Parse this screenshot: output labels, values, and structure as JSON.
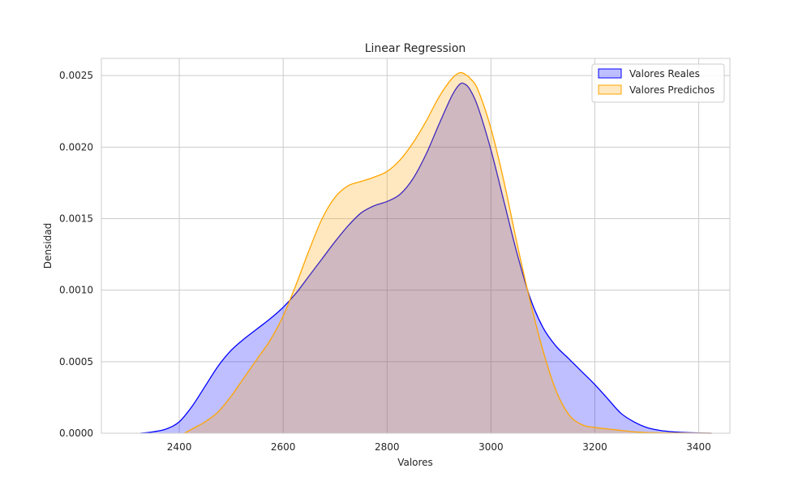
{
  "chart_data": {
    "type": "area",
    "title": "Linear Regression",
    "xlabel": "Valores",
    "ylabel": "Densidad",
    "xlim": [
      2250,
      3460
    ],
    "ylim": [
      0,
      0.00262
    ],
    "xticks": [
      2400,
      2600,
      2800,
      3000,
      3200,
      3400
    ],
    "xtick_labels": [
      "2400",
      "2600",
      "2800",
      "3000",
      "3200",
      "3400"
    ],
    "yticks": [
      0,
      0.0005,
      0.001,
      0.0015,
      0.002,
      0.0025
    ],
    "ytick_labels": [
      "0.0000",
      "0.0005",
      "0.0010",
      "0.0015",
      "0.0020",
      "0.0025"
    ],
    "grid": true,
    "legend_position": "top-right",
    "series": [
      {
        "name": "Valores Reales",
        "color": "#0000ff",
        "fill": "rgba(0,0,255,0.25)",
        "x": [
          2325,
          2350,
          2375,
          2400,
          2425,
          2450,
          2475,
          2500,
          2525,
          2550,
          2575,
          2600,
          2625,
          2650,
          2675,
          2700,
          2725,
          2750,
          2775,
          2800,
          2825,
          2850,
          2875,
          2900,
          2925,
          2940,
          2950,
          2960,
          2975,
          3000,
          3025,
          3050,
          3075,
          3100,
          3125,
          3150,
          3175,
          3200,
          3225,
          3250,
          3275,
          3300,
          3325,
          3350,
          3375,
          3400,
          3425
        ],
        "y": [
          0.0,
          1e-05,
          3e-05,
          8e-05,
          0.00019,
          0.00033,
          0.00047,
          0.00058,
          0.00066,
          0.00073,
          0.0008,
          0.00088,
          0.00098,
          0.0011,
          0.00122,
          0.00134,
          0.00145,
          0.00154,
          0.00159,
          0.00162,
          0.00167,
          0.00178,
          0.00195,
          0.00216,
          0.00236,
          0.00244,
          0.00244,
          0.0024,
          0.00228,
          0.00198,
          0.00162,
          0.00126,
          0.00095,
          0.00074,
          0.00061,
          0.00052,
          0.00043,
          0.00034,
          0.00024,
          0.00014,
          8e-05,
          4e-05,
          2e-05,
          1e-05,
          5e-06,
          2e-06,
          0.0
        ]
      },
      {
        "name": "Valores Predichos",
        "color": "#ffa500",
        "fill": "rgba(255,165,0,0.25)",
        "x": [
          2410,
          2425,
          2450,
          2475,
          2500,
          2525,
          2550,
          2575,
          2600,
          2625,
          2650,
          2675,
          2700,
          2725,
          2750,
          2775,
          2800,
          2825,
          2850,
          2875,
          2900,
          2925,
          2940,
          2950,
          2960,
          2975,
          3000,
          3025,
          3050,
          3075,
          3100,
          3125,
          3150,
          3175,
          3200,
          3225,
          3250,
          3275,
          3300,
          3325,
          3350,
          3375,
          3400,
          3425
        ],
        "y": [
          0.0,
          3e-05,
          8e-05,
          0.00015,
          0.00026,
          0.00039,
          0.00052,
          0.00065,
          0.00082,
          0.00104,
          0.00128,
          0.0015,
          0.00165,
          0.00173,
          0.00176,
          0.00179,
          0.00183,
          0.00191,
          0.00203,
          0.00218,
          0.00235,
          0.00248,
          0.00252,
          0.00251,
          0.00248,
          0.0024,
          0.00213,
          0.00176,
          0.00133,
          0.00093,
          0.00058,
          0.0003,
          0.00013,
          6e-05,
          4e-05,
          3e-05,
          2e-05,
          1e-05,
          5e-06,
          3e-06,
          2e-06,
          1e-06,
          5e-07,
          0.0
        ]
      }
    ]
  }
}
